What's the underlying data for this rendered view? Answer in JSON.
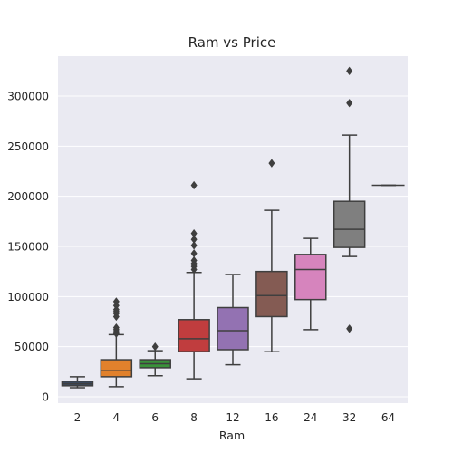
{
  "chart_data": {
    "type": "boxplot",
    "title": "Ram vs Price",
    "xlabel": "Ram",
    "ylabel": "",
    "ylim": [
      -6000,
      340000
    ],
    "yticks": [
      0,
      50000,
      100000,
      150000,
      200000,
      250000,
      300000
    ],
    "ytick_labels": [
      "0",
      "50000",
      "100000",
      "150000",
      "200000",
      "250000",
      "300000"
    ],
    "grid": true,
    "legend": "none",
    "categories": [
      "2",
      "4",
      "6",
      "8",
      "12",
      "16",
      "24",
      "32",
      "64"
    ],
    "series": [
      {
        "category": "2",
        "color": "#3a4a60",
        "whisker_low": 9000,
        "q1": 11000,
        "median": 13000,
        "q3": 15500,
        "whisker_high": 20000,
        "outliers": []
      },
      {
        "category": "4",
        "color": "#e1812c",
        "whisker_low": 10000,
        "q1": 20000,
        "median": 26000,
        "q3": 37000,
        "whisker_high": 62000,
        "outliers": [
          63000,
          65000,
          67000,
          69000,
          80000,
          83000,
          85000,
          87000,
          91000,
          95000
        ]
      },
      {
        "category": "6",
        "color": "#3a923a",
        "whisker_low": 21000,
        "q1": 29000,
        "median": 33000,
        "q3": 37000,
        "whisker_high": 46000,
        "outliers": [
          50000
        ]
      },
      {
        "category": "8",
        "color": "#c03d3e",
        "whisker_low": 18000,
        "q1": 45000,
        "median": 58000,
        "q3": 77000,
        "whisker_high": 124000,
        "outliers": [
          127000,
          130000,
          133000,
          136000,
          143000,
          151000,
          157000,
          163000,
          211000
        ]
      },
      {
        "category": "12",
        "color": "#9372b2",
        "whisker_low": 32000,
        "q1": 47000,
        "median": 66000,
        "q3": 89000,
        "whisker_high": 122000,
        "outliers": []
      },
      {
        "category": "16",
        "color": "#845b53",
        "whisker_low": 45000,
        "q1": 80000,
        "median": 101000,
        "q3": 125000,
        "whisker_high": 186000,
        "outliers": [
          233000
        ]
      },
      {
        "category": "24",
        "color": "#d684bd",
        "whisker_low": 67000,
        "q1": 97000,
        "median": 127000,
        "q3": 142000,
        "whisker_high": 158000,
        "outliers": []
      },
      {
        "category": "32",
        "color": "#7f7f7f",
        "whisker_low": 140000,
        "q1": 149000,
        "median": 167000,
        "q3": 195000,
        "whisker_high": 261000,
        "outliers": [
          68000,
          293000,
          325000
        ]
      },
      {
        "category": "64",
        "color": "#a9aa35",
        "whisker_low": 211000,
        "q1": 211000,
        "median": 211000,
        "q3": 211000,
        "whisker_high": 211000,
        "outliers": []
      }
    ]
  }
}
